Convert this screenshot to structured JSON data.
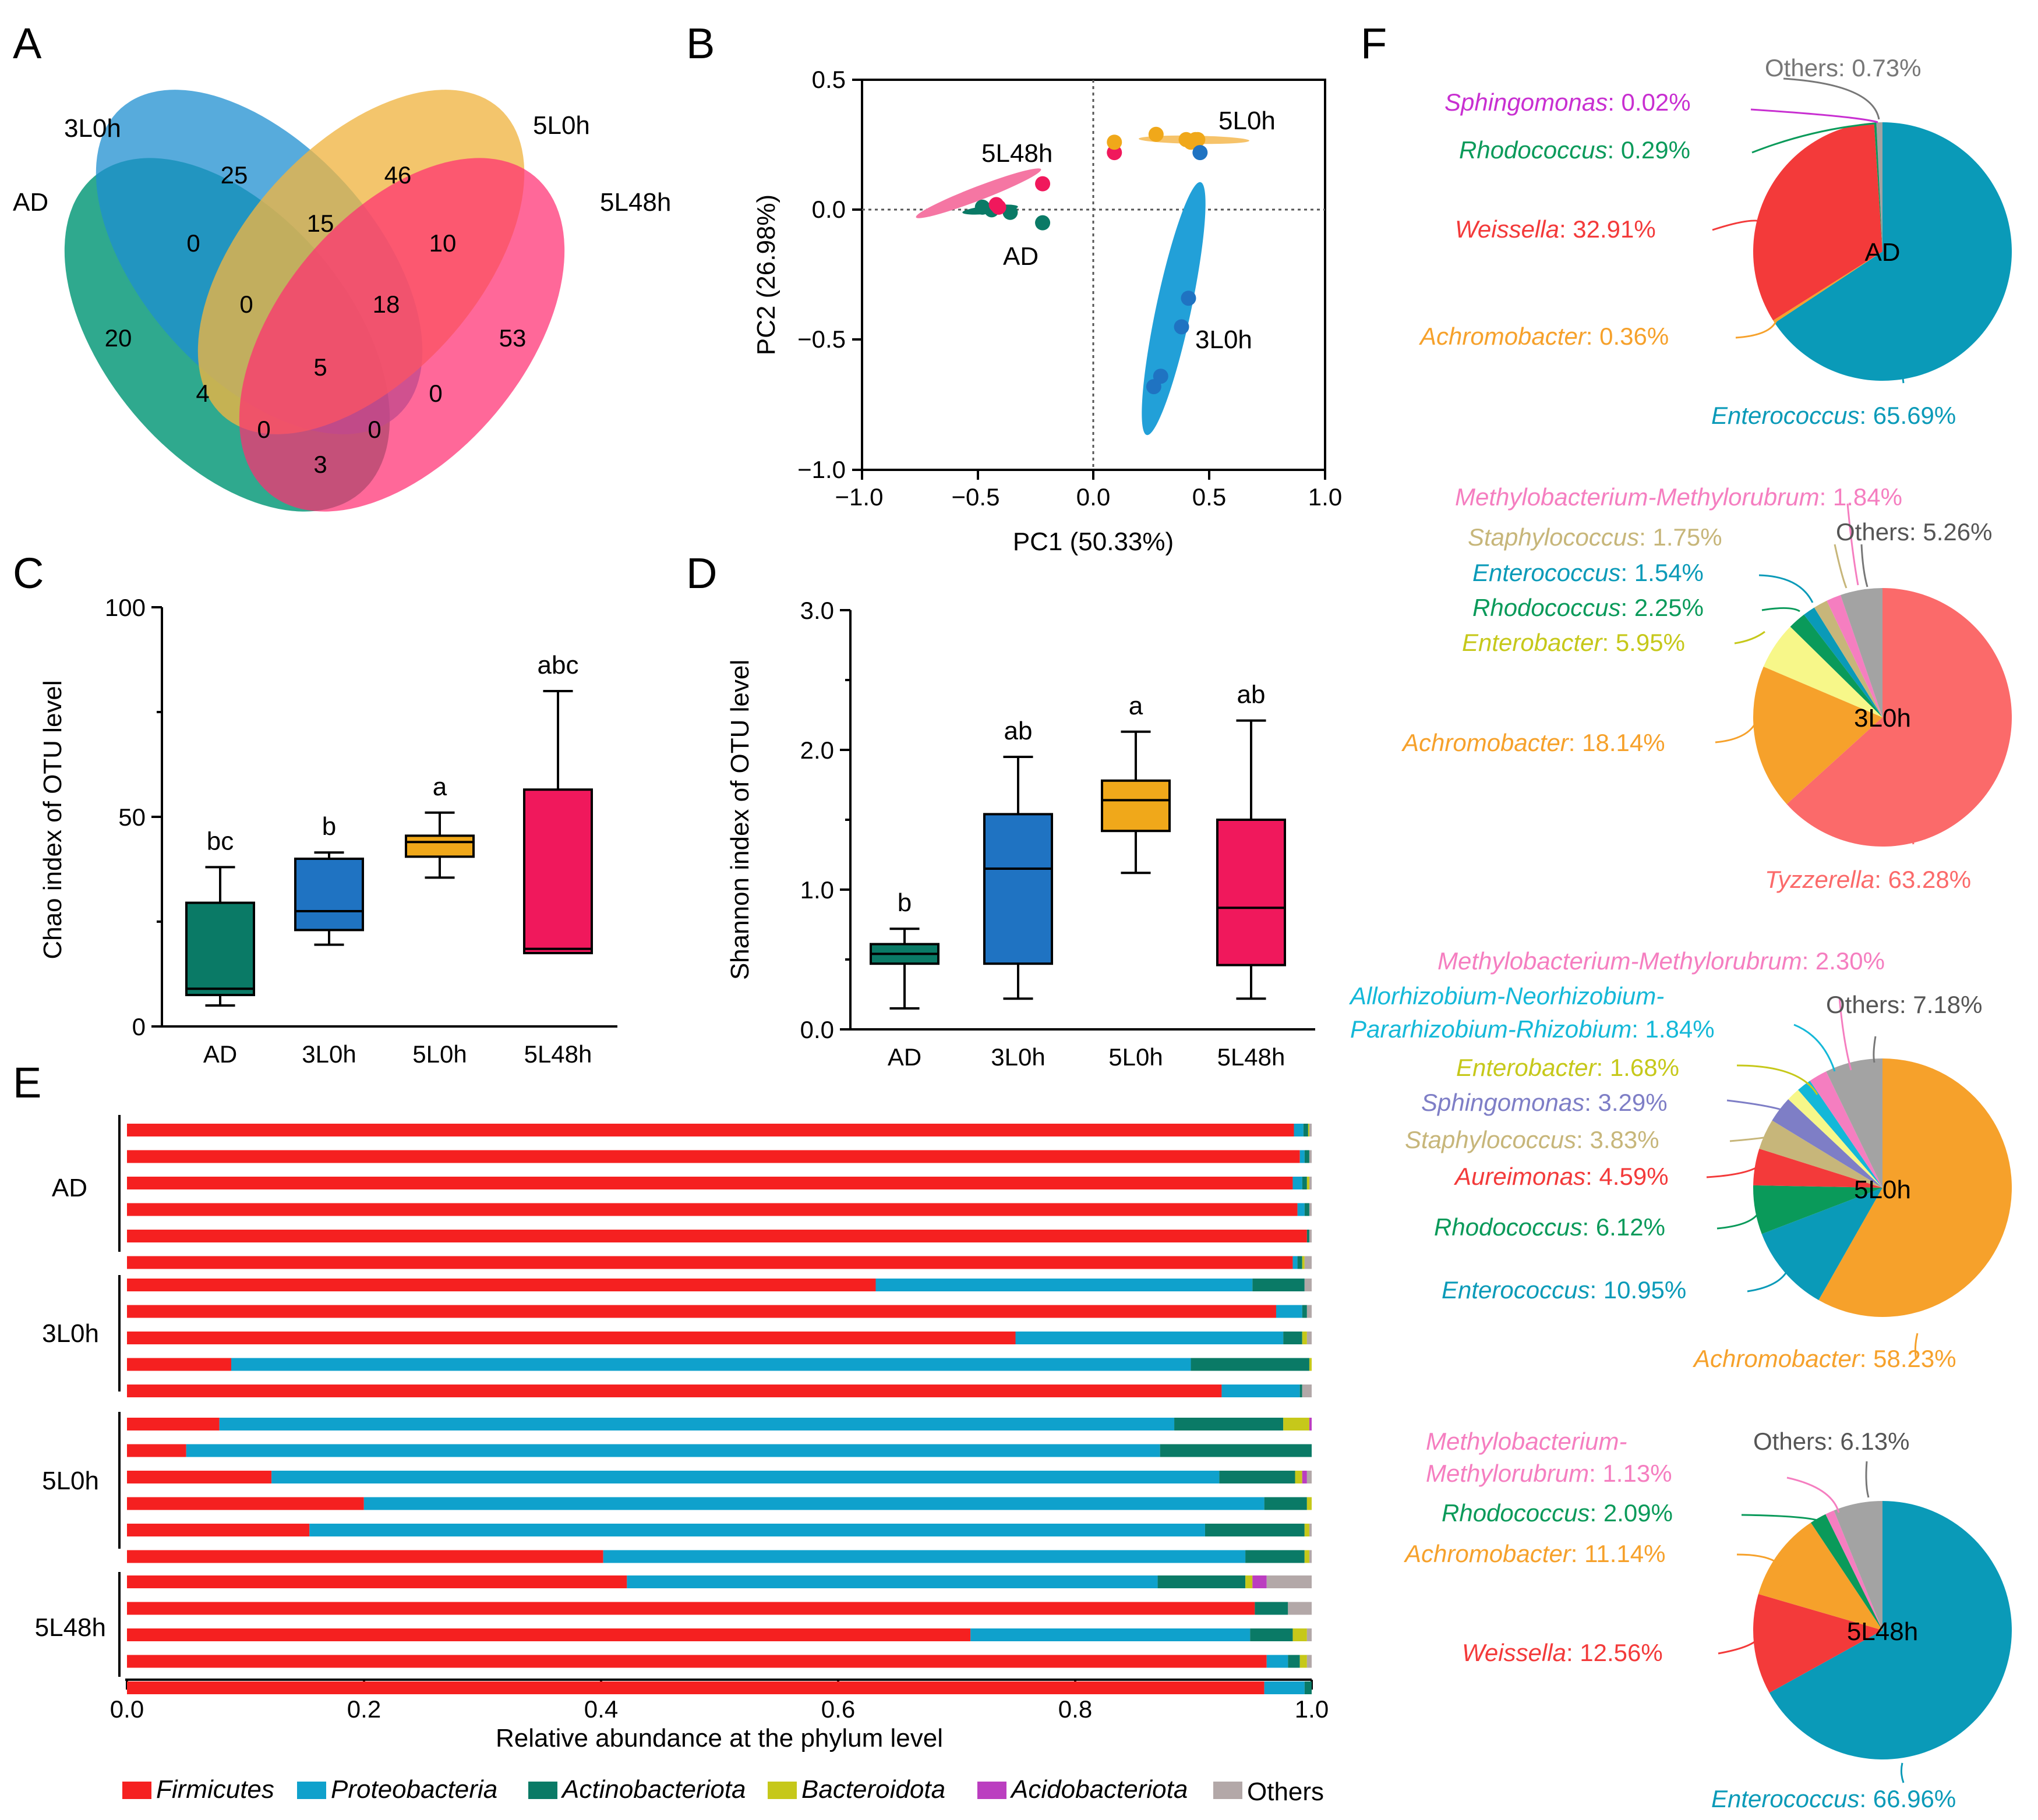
{
  "panel_letters": [
    "A",
    "B",
    "C",
    "D",
    "E",
    "F"
  ],
  "colors": {
    "AD": "#0a7a66",
    "3L0h": "#1f73c2",
    "5L0h": "#f0a81a",
    "5L48h": "#f0185c",
    "firmicutes": "#f52020",
    "proteobacteria": "#0fa1cc",
    "actinobacteriota": "#0a7a66",
    "bacteroidota": "#c6c81a",
    "acidobacteriota": "#bb3ec0",
    "others": "#b3a8a8"
  },
  "chart_data": [
    {
      "panel": "A",
      "type": "venn",
      "title": "",
      "sets": [
        "AD",
        "3L0h",
        "5L0h",
        "5L48h"
      ],
      "regions": [
        {
          "label": "AD only",
          "value": "20"
        },
        {
          "label": "3L0h only",
          "value": "25"
        },
        {
          "label": "5L0h only",
          "value": "46"
        },
        {
          "label": "5L48h only",
          "value": "53"
        },
        {
          "label": "AD∩3L0h",
          "value": "0"
        },
        {
          "label": "3L0h∩5L0h",
          "value": "15"
        },
        {
          "label": "5L0h∩5L48h",
          "value": "10"
        },
        {
          "label": "AD∩3L0h∩5L0h",
          "value": "0"
        },
        {
          "label": "3L0h∩5L0h∩5L48h",
          "value": "18"
        },
        {
          "label": "all",
          "value": "5"
        },
        {
          "label": "AD∩5L0h",
          "value": "4"
        },
        {
          "label": "3L0h∩5L48h",
          "value": "0"
        },
        {
          "label": "AD∩5L0h∩5L48h",
          "value": "0"
        },
        {
          "label": "AD∩3L0h∩5L48h",
          "value": "0"
        },
        {
          "label": "AD∩5L48h",
          "value": "3"
        }
      ]
    },
    {
      "panel": "B",
      "type": "scatter",
      "xlabel": "PC1 (50.33%)",
      "ylabel": "PC2 (26.98%)",
      "xlim": [
        -1.0,
        1.0
      ],
      "ylim": [
        -1.0,
        0.5
      ],
      "xticks": [
        "−1.0",
        "−0.5",
        "0.0",
        "0.5",
        "1.0"
      ],
      "yticks": [
        "0.5",
        "0.0",
        "−0.5",
        "−1.0"
      ],
      "series": [
        {
          "name": "AD",
          "points": [
            [
              -0.48,
              0.01
            ],
            [
              -0.44,
              0.0
            ],
            [
              -0.36,
              -0.01
            ],
            [
              -0.22,
              -0.05
            ]
          ]
        },
        {
          "name": "5L48h",
          "points": [
            [
              -0.42,
              0.02
            ],
            [
              -0.41,
              0.01
            ],
            [
              -0.22,
              0.1
            ],
            [
              0.09,
              0.22
            ]
          ]
        },
        {
          "name": "5L0h",
          "points": [
            [
              0.09,
              0.26
            ],
            [
              0.27,
              0.29
            ],
            [
              0.4,
              0.27
            ],
            [
              0.42,
              0.26
            ],
            [
              0.44,
              0.27
            ],
            [
              0.45,
              0.27
            ]
          ]
        },
        {
          "name": "3L0h",
          "points": [
            [
              0.46,
              0.22
            ],
            [
              0.41,
              -0.34
            ],
            [
              0.38,
              -0.45
            ],
            [
              0.29,
              -0.64
            ],
            [
              0.26,
              -0.68
            ]
          ]
        }
      ]
    },
    {
      "panel": "C",
      "type": "box",
      "ylabel": "Chao index of OTU level",
      "ylim": [
        0,
        100
      ],
      "yticks": [
        "0",
        "50",
        "100"
      ],
      "categories": [
        "AD",
        "3L0h",
        "5L0h",
        "5L48h"
      ],
      "boxes": [
        {
          "min": 5,
          "q1": 7.5,
          "median": 9,
          "q3": 29.5,
          "max": 38,
          "letter": "bc"
        },
        {
          "min": 19.5,
          "q1": 23,
          "median": 27.5,
          "q3": 40,
          "max": 41.5,
          "letter": "b"
        },
        {
          "min": 35.5,
          "q1": 40.5,
          "median": 44,
          "q3": 45.5,
          "max": 51,
          "letter": "a"
        },
        {
          "min": 17.5,
          "q1": 17.5,
          "median": 18.5,
          "q3": 56.5,
          "max": 80,
          "letter": "abc"
        }
      ]
    },
    {
      "panel": "D",
      "type": "box",
      "ylabel": "Shannon index of OTU level",
      "ylim": [
        0,
        3.0
      ],
      "yticks": [
        "0.0",
        "1.0",
        "2.0",
        "3.0"
      ],
      "categories": [
        "AD",
        "3L0h",
        "5L0h",
        "5L48h"
      ],
      "boxes": [
        {
          "min": 0.15,
          "q1": 0.47,
          "median": 0.54,
          "q3": 0.61,
          "max": 0.72,
          "letter": "b"
        },
        {
          "min": 0.22,
          "q1": 0.47,
          "median": 1.15,
          "q3": 1.54,
          "max": 1.95,
          "letter": "ab"
        },
        {
          "min": 1.12,
          "q1": 1.42,
          "median": 1.64,
          "q3": 1.78,
          "max": 2.13,
          "letter": "a"
        },
        {
          "min": 0.22,
          "q1": 0.46,
          "median": 0.87,
          "q3": 1.5,
          "max": 2.21,
          "letter": "ab"
        }
      ]
    },
    {
      "panel": "E",
      "type": "bar",
      "orientation": "horizontal-stacked",
      "xlabel": "Relative abundance at the phylum level",
      "xlim": [
        0.0,
        1.0
      ],
      "xticks": [
        "0.0",
        "0.2",
        "0.4",
        "0.6",
        "0.8",
        "1.0"
      ],
      "series_names": [
        "Firmicutes",
        "Proteobacteria",
        "Actinobacteriota",
        "Bacteroidota",
        "Acidobacteriota",
        "Others"
      ],
      "groups": [
        {
          "name": "AD",
          "samples": [
            [
              0.985,
              0.008,
              0.004,
              0.001,
              0.0,
              0.002
            ],
            [
              0.99,
              0.004,
              0.004,
              0.0,
              0.0,
              0.002
            ],
            [
              0.984,
              0.008,
              0.004,
              0.002,
              0.0,
              0.002
            ],
            [
              0.988,
              0.006,
              0.004,
              0.0,
              0.0,
              0.002
            ],
            [
              0.996,
              0.0,
              0.002,
              0.0,
              0.0,
              0.002
            ],
            [
              0.984,
              0.004,
              0.004,
              0.002,
              0.0,
              0.006
            ]
          ]
        },
        {
          "name": "3L0h",
          "samples": [
            [
              0.632,
              0.318,
              0.044,
              0.0,
              0.0,
              0.006
            ],
            [
              0.97,
              0.022,
              0.004,
              0.0,
              0.0,
              0.004
            ],
            [
              0.75,
              0.226,
              0.016,
              0.004,
              0.0,
              0.004
            ],
            [
              0.088,
              0.81,
              0.1,
              0.002,
              0.0,
              0.0
            ],
            [
              0.924,
              0.066,
              0.002,
              0.0,
              0.0,
              0.008
            ]
          ]
        },
        {
          "name": "5L0h",
          "samples": [
            [
              0.078,
              0.806,
              0.092,
              0.022,
              0.002,
              0.0
            ],
            [
              0.05,
              0.822,
              0.128,
              0.0,
              0.0,
              0.0
            ],
            [
              0.122,
              0.8,
              0.064,
              0.006,
              0.004,
              0.004
            ],
            [
              0.2,
              0.76,
              0.036,
              0.004,
              0.0,
              0.0
            ],
            [
              0.154,
              0.756,
              0.084,
              0.004,
              0.0,
              0.002
            ],
            [
              0.402,
              0.542,
              0.05,
              0.004,
              0.0,
              0.002
            ]
          ]
        },
        {
          "name": "5L48h",
          "samples": [
            [
              0.422,
              0.448,
              0.074,
              0.006,
              0.012,
              0.038
            ],
            [
              0.952,
              0.0,
              0.028,
              0.0,
              0.0,
              0.02
            ],
            [
              0.712,
              0.236,
              0.036,
              0.012,
              0.0,
              0.004
            ],
            [
              0.962,
              0.018,
              0.01,
              0.006,
              0.0,
              0.004
            ],
            [
              0.96,
              0.034,
              0.006,
              0.0,
              0.0,
              0.0
            ]
          ]
        }
      ]
    },
    {
      "panel": "F",
      "type": "pie",
      "pies": [
        {
          "name": "AD",
          "slices": [
            {
              "label": "Enterococcus",
              "value": 65.69,
              "pct": "65.69%",
              "color": "#0a9ab8"
            },
            {
              "label": "Achromobacter",
              "value": 0.36,
              "pct": "0.36%",
              "color": "#f6a12b"
            },
            {
              "label": "Weissella",
              "value": 32.91,
              "pct": "32.91%",
              "color": "#f33a3a"
            },
            {
              "label": "Rhodococcus",
              "value": 0.29,
              "pct": "0.29%",
              "color": "#0a9a5a"
            },
            {
              "label": "Sphingomonas",
              "value": 0.02,
              "pct": "0.02%",
              "color": "#c82fd1"
            },
            {
              "label": "Others",
              "value": 0.73,
              "pct": "0.73%",
              "color": "#a3a3a3"
            }
          ]
        },
        {
          "name": "3L0h",
          "slices": [
            {
              "label": "Tyzzerella",
              "value": 63.28,
              "pct": "63.28%",
              "color": "#fb6a6a"
            },
            {
              "label": "Achromobacter",
              "value": 18.14,
              "pct": "18.14%",
              "color": "#f6a12b"
            },
            {
              "label": "Enterobacter",
              "value": 5.95,
              "pct": "5.95%",
              "color": "#f7f789"
            },
            {
              "label": "Rhodococcus",
              "value": 2.25,
              "pct": "2.25%",
              "color": "#0a9a5a"
            },
            {
              "label": "Enterococcus",
              "value": 1.54,
              "pct": "1.54%",
              "color": "#0a9ab8"
            },
            {
              "label": "Staphylococcus",
              "value": 1.75,
              "pct": "1.75%",
              "color": "#c7b67a"
            },
            {
              "label": "Methylobacterium-Methylorubrum",
              "value": 1.84,
              "pct": "1.84%",
              "color": "#f57ec0"
            },
            {
              "label": "Others",
              "value": 5.26,
              "pct": "5.26%",
              "color": "#a3a3a3"
            }
          ]
        },
        {
          "name": "5L0h",
          "slices": [
            {
              "label": "Achromobacter",
              "value": 58.23,
              "pct": "58.23%",
              "color": "#f6a12b"
            },
            {
              "label": "Enterococcus",
              "value": 10.95,
              "pct": "10.95%",
              "color": "#0a9ab8"
            },
            {
              "label": "Rhodococcus",
              "value": 6.12,
              "pct": "6.12%",
              "color": "#0a9a5a"
            },
            {
              "label": "Aureimonas",
              "value": 4.59,
              "pct": "4.59%",
              "color": "#f33a3a"
            },
            {
              "label": "Staphylococcus",
              "value": 3.83,
              "pct": "3.83%",
              "color": "#c7b67a"
            },
            {
              "label": "Sphingomonas",
              "value": 3.29,
              "pct": "3.29%",
              "color": "#7e7ec6"
            },
            {
              "label": "Enterobacter",
              "value": 1.68,
              "pct": "1.68%",
              "color": "#f7f789"
            },
            {
              "label": "Allorhizobium-Neorhizobium-Pararhizobium-Rhizobium",
              "value": 1.84,
              "pct": "1.84%",
              "color": "#14b8d8"
            },
            {
              "label": "Methylobacterium-Methylorubrum",
              "value": 2.3,
              "pct": "2.30%",
              "color": "#f57ec0"
            },
            {
              "label": "Others",
              "value": 7.18,
              "pct": "7.18%",
              "color": "#a3a3a3"
            }
          ]
        },
        {
          "name": "5L48h",
          "slices": [
            {
              "label": "Enterococcus",
              "value": 66.96,
              "pct": "66.96%",
              "color": "#0a9ab8"
            },
            {
              "label": "Weissella",
              "value": 12.56,
              "pct": "12.56%",
              "color": "#f33a3a"
            },
            {
              "label": "Achromobacter",
              "value": 11.14,
              "pct": "11.14%",
              "color": "#f6a12b"
            },
            {
              "label": "Rhodococcus",
              "value": 2.09,
              "pct": "2.09%",
              "color": "#0a9a5a"
            },
            {
              "label": "Methylobacterium-Methylorubrum",
              "value": 1.13,
              "pct": "1.13%",
              "color": "#f57ec0"
            },
            {
              "label": "Others",
              "value": 6.13,
              "pct": "6.13%",
              "color": "#a3a3a3"
            }
          ]
        }
      ]
    }
  ],
  "labels": {
    "A": {
      "AD": "AD",
      "3L0h": "3L0h",
      "5L0h": "5L0h",
      "5L48h": "5L48h"
    },
    "B": {
      "AD": "AD",
      "3L0h": "3L0h",
      "5L0h": "5L0h",
      "5L48h": "5L48h"
    },
    "E": {
      "AD": "AD",
      "3L0h": "3L0h",
      "5L0h": "5L0h",
      "5L48h": "5L48h"
    },
    "legend": {
      "firmicutes": "Firmicutes",
      "proteobacteria": "Proteobacteria",
      "actinobacteriota": "Actinobacteriota",
      "bacteroidota": "Bacteroidota",
      "acidobacteriota": "Acidobacteriota",
      "others": "Others"
    },
    "F": {
      "AD": {
        "others": "Others: 0.73%",
        "sphingo_name": "Sphingomonas",
        "sphingo_val": ": 0.02%",
        "rhodo_name": "Rhodococcus",
        "rhodo_val": ": 0.29%",
        "weiss_name": "Weissella",
        "weiss_val": ": 32.91%",
        "achro_name": "Achromobacter",
        "achro_val": ": 0.36%",
        "entero_name": "Enterococcus",
        "entero_val": ": 65.69%"
      },
      "L3": {
        "methylo_name": "Methylobacterium-Methylorubrum",
        "methylo_val": ": 1.84%",
        "staph_name": "Staphylococcus",
        "staph_val": ": 1.75%",
        "others": "Others: 5.26%",
        "entero_name": "Enterococcus",
        "entero_val": ": 1.54%",
        "rhodo_name": "Rhodococcus",
        "rhodo_val": ": 2.25%",
        "enterob_name": "Enterobacter",
        "enterob_val": ": 5.95%",
        "achro_name": "Achromobacter",
        "achro_val": ": 18.14%",
        "tyzz_name": "Tyzzerella",
        "tyzz_val": ": 63.28%"
      },
      "L5": {
        "methylo_name": "Methylobacterium-Methylorubrum",
        "methylo_val": ": 2.30%",
        "allo_name1": "Allorhizobium-Neorhizobium-",
        "allo_name2": "Pararhizobium-Rhizobium",
        "allo_val": ": 1.84%",
        "others": "Others: 7.18%",
        "enterob_name": "Enterobacter",
        "enterob_val": ": 1.68%",
        "sphingo_name": "Sphingomonas",
        "sphingo_val": ": 3.29%",
        "staph_name": "Staphylococcus",
        "staph_val": ": 3.83%",
        "aurei_name": "Aureimonas",
        "aurei_val": ": 4.59%",
        "rhodo_name": "Rhodococcus",
        "rhodo_val": ": 6.12%",
        "entero_name": "Enterococcus",
        "entero_val": ": 10.95%",
        "achro_name": "Achromobacter",
        "achro_val": ": 58.23%"
      },
      "L48": {
        "methylo_name1": "Methylobacterium-",
        "methylo_name2": "Methylorubrum",
        "methylo_val": ": 1.13%",
        "others": "Others: 6.13%",
        "rhodo_name": "Rhodococcus",
        "rhodo_val": ": 2.09%",
        "achro_name": "Achromobacter",
        "achro_val": ": 11.14%",
        "weiss_name": "Weissella",
        "weiss_val": ": 12.56%",
        "entero_name": "Enterococcus",
        "entero_val": ": 66.96%"
      }
    }
  }
}
